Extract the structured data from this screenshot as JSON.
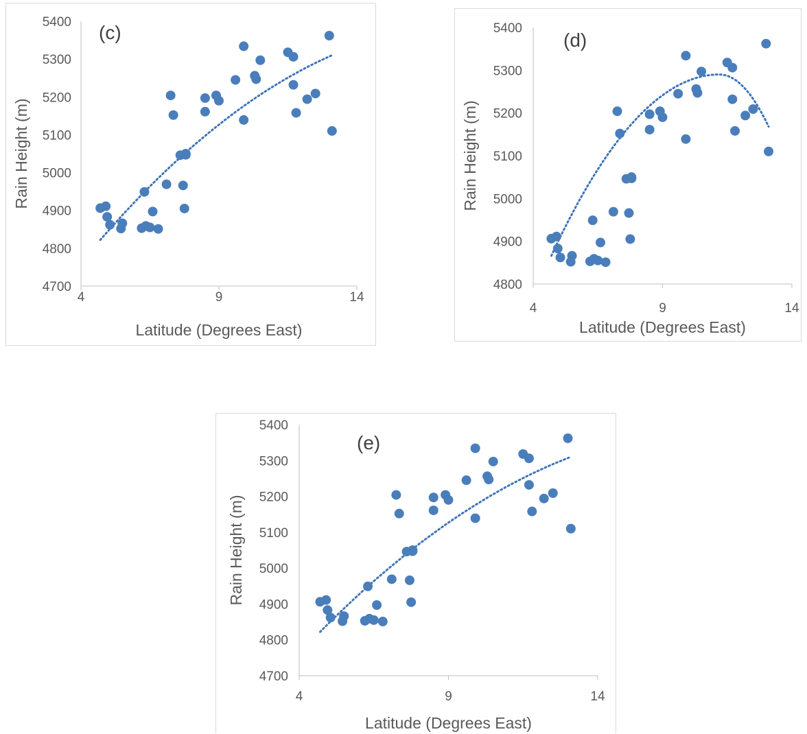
{
  "style": {
    "point_color": "#4a7ebb",
    "trend_color": "#3f75b8"
  },
  "chart_data": [
    {
      "type": "scatter",
      "panel_label": "(c)",
      "xlabel": "Latitude (Degrees East)",
      "ylabel": "Rain Height (m)",
      "xlim": [
        4,
        14
      ],
      "ylim": [
        4700,
        5400
      ],
      "xticks": [
        4,
        9,
        14
      ],
      "yticks": [
        4700,
        4800,
        4900,
        5000,
        5100,
        5200,
        5300,
        5400
      ],
      "series": [
        {
          "x": [
            4.7,
            4.9,
            4.95,
            5.05,
            5.45,
            5.5,
            6.2,
            6.3,
            6.35,
            6.5,
            6.6,
            6.8,
            7.1,
            7.25,
            7.35,
            7.6,
            7.7,
            7.75,
            7.8,
            7.8,
            8.5,
            8.5,
            8.9,
            9.0,
            9.6,
            9.9,
            9.9,
            10.3,
            10.35,
            10.5,
            11.5,
            11.7,
            11.7,
            11.8,
            12.2,
            12.5,
            13.0,
            13.1
          ],
          "y": [
            4906,
            4911,
            4883,
            4862,
            4852,
            4866,
            4853,
            4949,
            4859,
            4855,
            4897,
            4851,
            4969,
            5204,
            5152,
            5046,
            4966,
            4905,
            5050,
            5047,
            5197,
            5161,
            5204,
            5190,
            5245,
            5334,
            5139,
            5256,
            5247,
            5297,
            5318,
            5306,
            5232,
            5158,
            5194,
            5209,
            5362,
            5110
          ]
        }
      ],
      "trendline": {
        "type": "quadratic",
        "x_range": [
          4.7,
          13.1
        ],
        "y_start": 4822,
        "y_end": 5310
      }
    },
    {
      "type": "scatter",
      "panel_label": "(d)",
      "xlabel": "Latitude (Degrees East)",
      "ylabel": "Rain Height (m)",
      "xlim": [
        4,
        14
      ],
      "ylim": [
        4800,
        5400
      ],
      "xticks": [
        4,
        9,
        14
      ],
      "yticks": [
        4800,
        4900,
        5000,
        5100,
        5200,
        5300,
        5400
      ],
      "series": [
        {
          "x": [
            4.7,
            4.9,
            4.95,
            5.05,
            5.45,
            5.5,
            6.2,
            6.3,
            6.35,
            6.5,
            6.6,
            6.8,
            7.1,
            7.25,
            7.35,
            7.6,
            7.7,
            7.75,
            7.8,
            7.8,
            8.5,
            8.5,
            8.9,
            9.0,
            9.6,
            9.9,
            9.9,
            10.3,
            10.35,
            10.5,
            11.5,
            11.7,
            11.7,
            11.8,
            12.2,
            12.5,
            13.0,
            13.1
          ],
          "y": [
            4906,
            4911,
            4883,
            4862,
            4852,
            4866,
            4853,
            4949,
            4859,
            4855,
            4897,
            4851,
            4969,
            5204,
            5152,
            5046,
            4966,
            4905,
            5050,
            5047,
            5197,
            5161,
            5204,
            5190,
            5245,
            5334,
            5139,
            5256,
            5247,
            5297,
            5318,
            5306,
            5232,
            5158,
            5194,
            5209,
            5362,
            5110
          ]
        }
      ],
      "trendline": {
        "type": "polynomial",
        "x_range": [
          4.7,
          13.1
        ],
        "peak_x": 11.2,
        "peak_y": 5290,
        "y_start": 4866,
        "y_end": 5168
      }
    },
    {
      "type": "scatter",
      "panel_label": "(e)",
      "xlabel": "Latitude (Degrees East)",
      "ylabel": "Rain Height (m)",
      "xlim": [
        4,
        14
      ],
      "ylim": [
        4700,
        5400
      ],
      "xticks": [
        4,
        9,
        14
      ],
      "yticks": [
        4700,
        4800,
        4900,
        5000,
        5100,
        5200,
        5300,
        5400
      ],
      "series": [
        {
          "x": [
            4.7,
            4.9,
            4.95,
            5.05,
            5.45,
            5.5,
            6.2,
            6.3,
            6.35,
            6.5,
            6.6,
            6.8,
            7.1,
            7.25,
            7.35,
            7.6,
            7.7,
            7.75,
            7.8,
            7.8,
            8.5,
            8.5,
            8.9,
            9.0,
            9.6,
            9.9,
            9.9,
            10.3,
            10.35,
            10.5,
            11.5,
            11.7,
            11.7,
            11.8,
            12.2,
            12.5,
            13.0,
            13.1
          ],
          "y": [
            4906,
            4911,
            4883,
            4862,
            4852,
            4866,
            4853,
            4949,
            4859,
            4855,
            4897,
            4851,
            4969,
            5204,
            5152,
            5046,
            4966,
            4905,
            5050,
            5047,
            5197,
            5161,
            5204,
            5190,
            5245,
            5334,
            5139,
            5256,
            5247,
            5297,
            5318,
            5306,
            5232,
            5158,
            5194,
            5209,
            5362,
            5110
          ]
        }
      ],
      "trendline": {
        "type": "quadratic",
        "x_range": [
          4.7,
          13.1
        ],
        "y_start": 4822,
        "y_end": 5310
      }
    }
  ]
}
